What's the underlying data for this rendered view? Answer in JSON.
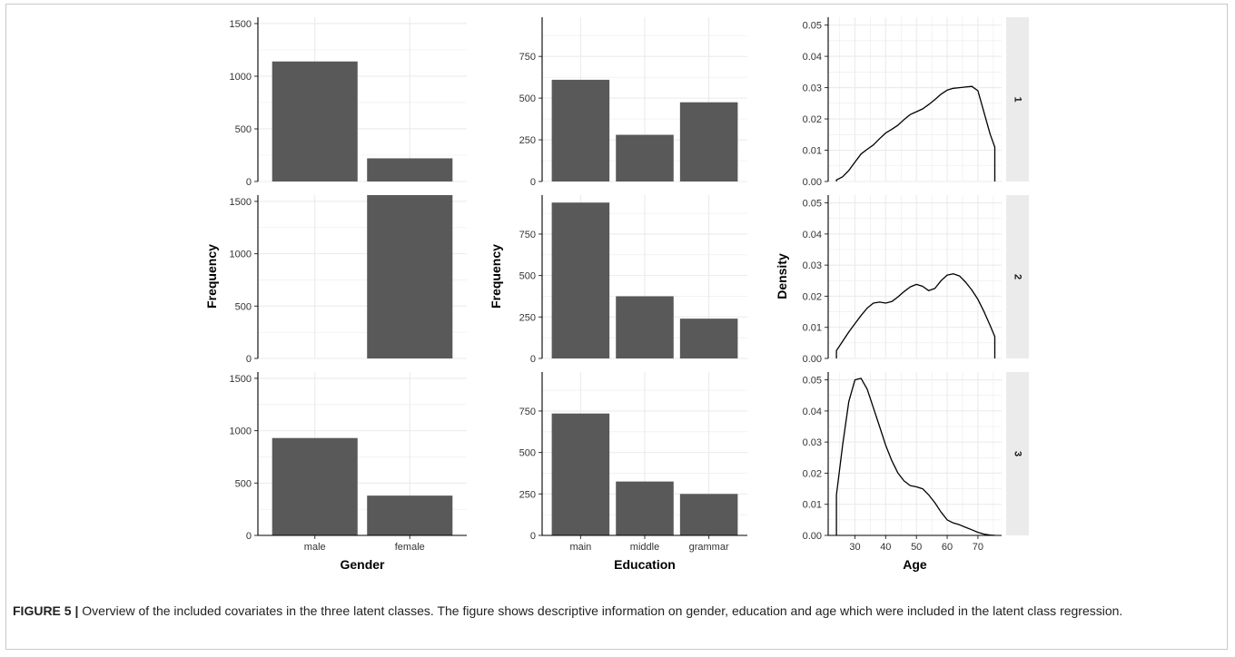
{
  "caption": {
    "label": "FIGURE 5 |",
    "text": " Overview of the included covariates in the three latent classes. The figure shows descriptive information on gender, education and age which were included in the latent class regression."
  },
  "colors": {
    "bar": "#595959",
    "grid": "#ebebeb",
    "strip": "#ebebeb",
    "line": "#000000"
  },
  "chart_data": [
    {
      "type": "bar",
      "xlabel": "Gender",
      "ylabel": "Frequency",
      "categories": [
        "male",
        "female"
      ],
      "ylim": [
        0,
        1560
      ],
      "yticks": [
        0,
        500,
        1000,
        1500
      ],
      "facets": [
        "1",
        "2",
        "3"
      ],
      "series": [
        {
          "facet": "1",
          "values": [
            1140,
            220
          ]
        },
        {
          "facet": "2",
          "values": [
            0,
            1560
          ]
        },
        {
          "facet": "3",
          "values": [
            930,
            380
          ]
        }
      ]
    },
    {
      "type": "bar",
      "xlabel": "Education",
      "ylabel": "Frequency",
      "categories": [
        "main",
        "middle",
        "grammar"
      ],
      "ylim": [
        0,
        985
      ],
      "yticks": [
        0,
        250,
        500,
        750
      ],
      "facets": [
        "1",
        "2",
        "3"
      ],
      "series": [
        {
          "facet": "1",
          "values": [
            610,
            280,
            475
          ]
        },
        {
          "facet": "2",
          "values": [
            940,
            375,
            240
          ]
        },
        {
          "facet": "3",
          "values": [
            735,
            325,
            250
          ]
        }
      ]
    },
    {
      "type": "area",
      "xlabel": "Age",
      "ylabel": "Density",
      "xlim": [
        21.3,
        77.7
      ],
      "xticks": [
        30,
        40,
        50,
        60,
        70
      ],
      "ylim": [
        0,
        0.0525
      ],
      "yticks": [
        "0.00",
        "0.01",
        "0.02",
        "0.03",
        "0.04",
        "0.05"
      ],
      "facets": [
        "1",
        "2",
        "3"
      ],
      "series": [
        {
          "facet": "1",
          "x": [
            24,
            26,
            28,
            30,
            32,
            34,
            36,
            38,
            40,
            42,
            44,
            46,
            48,
            50,
            52,
            54,
            56,
            58,
            60,
            62,
            64,
            66,
            68,
            70,
            72,
            74,
            75.5
          ],
          "y": [
            0.0005,
            0.0015,
            0.0035,
            0.0062,
            0.0088,
            0.0103,
            0.0117,
            0.0137,
            0.0155,
            0.0167,
            0.018,
            0.0198,
            0.0214,
            0.0223,
            0.0232,
            0.0246,
            0.0262,
            0.0279,
            0.0292,
            0.0298,
            0.03,
            0.0302,
            0.0304,
            0.029,
            0.022,
            0.015,
            0.011
          ]
        },
        {
          "facet": "2",
          "x": [
            24,
            26,
            28,
            30,
            32,
            34,
            36,
            38,
            40,
            42,
            44,
            46,
            48,
            50,
            52,
            54,
            56,
            58,
            60,
            62,
            64,
            66,
            68,
            70,
            72,
            74,
            75.5
          ],
          "y": [
            0.0025,
            0.0055,
            0.0085,
            0.0112,
            0.0138,
            0.0162,
            0.0178,
            0.0181,
            0.0178,
            0.0183,
            0.0198,
            0.0215,
            0.023,
            0.0238,
            0.0232,
            0.0218,
            0.0225,
            0.025,
            0.0268,
            0.0272,
            0.0265,
            0.0245,
            0.022,
            0.019,
            0.015,
            0.0105,
            0.007
          ]
        },
        {
          "facet": "3",
          "x": [
            24,
            26,
            28,
            30,
            32,
            34,
            36,
            38,
            40,
            42,
            44,
            46,
            48,
            50,
            52,
            54,
            56,
            58,
            60,
            62,
            64,
            66,
            68,
            70,
            72,
            74,
            75.5
          ],
          "y": [
            0.013,
            0.029,
            0.043,
            0.05,
            0.0505,
            0.047,
            0.041,
            0.035,
            0.029,
            0.024,
            0.02,
            0.0175,
            0.016,
            0.0156,
            0.015,
            0.013,
            0.0105,
            0.0075,
            0.005,
            0.004,
            0.0034,
            0.0026,
            0.0018,
            0.001,
            0.0004,
            0.0001,
            0.0
          ]
        }
      ]
    }
  ]
}
